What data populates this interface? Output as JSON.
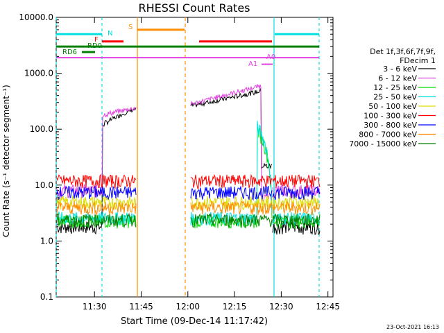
{
  "chart_data": {
    "type": "line",
    "title": "RHESSI Count Rates",
    "xlabel": "Start Time (09-Dec-14 11:17:42)",
    "ylabel": "Count Rate (s⁻¹ detector segment⁻¹)",
    "x_range_minutes": [
      0,
      42.3
    ],
    "x_unit_note": "",
    "yscale": "log",
    "ylim": [
      0.1,
      10000
    ],
    "x_ticks": [
      "11:30",
      "11:45",
      "12:00",
      "12:15",
      "12:30",
      "12:45"
    ],
    "y_ticks": [
      "0.1",
      "1.0",
      "10.0",
      "100.0",
      "1000.0",
      "10000.0"
    ],
    "legend_header": [
      "Det 1f,3f,6f,7f,9f,",
      "FDecim 1"
    ],
    "series": [
      {
        "name": "3 - 6 keV",
        "color": "#000000",
        "level": 1.8,
        "flare": [
          120,
          230,
          260,
          480,
          22
        ]
      },
      {
        "name": "6 - 12 keV",
        "color": "#e040e0",
        "level": 8,
        "flare": [
          180,
          240,
          280,
          600,
          6
        ]
      },
      {
        "name": "12 - 25 keV",
        "color": "#00dd00",
        "level": 2.3,
        "flare": null
      },
      {
        "name": "25 - 50 keV",
        "color": "#00e0e0",
        "level": 2.6,
        "flare": null
      },
      {
        "name": "50 - 100 keV",
        "color": "#dddd00",
        "level": 5,
        "flare": null
      },
      {
        "name": "100 - 300 keV",
        "color": "#ff0000",
        "level": 12,
        "flare": null
      },
      {
        "name": "300 - 800 keV",
        "color": "#0000ff",
        "level": 7.5,
        "flare": null
      },
      {
        "name": "800 - 7000 keV",
        "color": "#ff8c00",
        "level": 4,
        "flare": null
      },
      {
        "name": "7000 - 15000 keV",
        "color": "#008000",
        "level": 2.4,
        "flare": null
      }
    ],
    "bars": [
      {
        "label": "N",
        "color": "#00e0e0",
        "value": 5000
      },
      {
        "label": "F",
        "color": "#ff0000",
        "value": 3700
      },
      {
        "label": "S",
        "color": "#ff8c00",
        "value": 6000
      },
      {
        "label": "RD0",
        "color": "#008000",
        "value": 3000
      },
      {
        "label": "RD6",
        "color": "#008000",
        "value": 2400
      },
      {
        "label": "A1",
        "color": "#e040e0",
        "value": 1450
      },
      {
        "label": "A0",
        "color": "#e040e0",
        "value": 1900
      }
    ],
    "footer_date": "23-Oct-2021 16:13"
  }
}
